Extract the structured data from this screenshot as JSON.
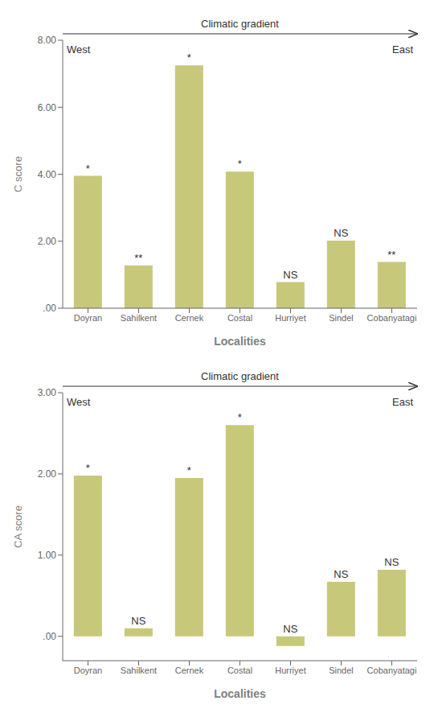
{
  "chart_data": [
    {
      "type": "bar",
      "categories": [
        "Doyran",
        "Sahilkent",
        "Cernek",
        "Costal",
        "Hurriyet",
        "Sindel",
        "Cobanyatagi"
      ],
      "values": [
        3.95,
        1.28,
        7.25,
        4.08,
        0.78,
        2.02,
        1.38
      ],
      "bar_annotations": [
        "*",
        "**",
        "*",
        "*",
        "NS",
        "NS",
        "**"
      ],
      "annotations": [
        "Climatic gradient",
        "West",
        "East"
      ],
      "x_label": "Localities",
      "y_label": "C score",
      "color": "#c8c87a",
      "ylim": [
        0,
        8.0
      ],
      "yticks": [
        {
          "value": 0.0,
          "label": ".00"
        },
        {
          "value": 2.0,
          "label": "2.00"
        },
        {
          "value": 4.0,
          "label": "4.00"
        },
        {
          "value": 6.0,
          "label": "6.00"
        },
        {
          "value": 8.0,
          "label": "8.00"
        }
      ],
      "grid": false
    },
    {
      "type": "bar",
      "categories": [
        "Doyran",
        "Sahilkent",
        "Cernek",
        "Costal",
        "Hurriyet",
        "Sindel",
        "Cobanyatagi"
      ],
      "values": [
        1.98,
        0.1,
        1.95,
        2.6,
        -0.12,
        0.67,
        0.82
      ],
      "bar_annotations": [
        "*",
        "NS",
        "*",
        "*",
        "NS",
        "NS",
        "NS"
      ],
      "annotations": [
        "Climatic gradient",
        "West",
        "East"
      ],
      "x_label": "Localities",
      "y_label": "CA score",
      "color": "#c8c87a",
      "ylim": [
        -0.3,
        3.0
      ],
      "yticks": [
        {
          "value": 0.0,
          "label": ".00"
        },
        {
          "value": 1.0,
          "label": "1.00"
        },
        {
          "value": 2.0,
          "label": "2.00"
        },
        {
          "value": 3.0,
          "label": "3.00"
        }
      ],
      "grid": false
    }
  ]
}
